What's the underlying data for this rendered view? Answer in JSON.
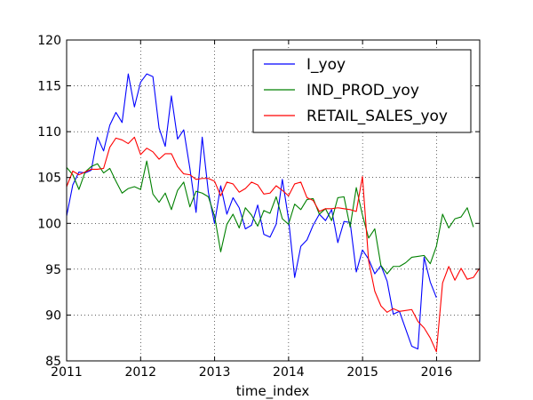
{
  "chart_data": {
    "type": "line",
    "xlabel": "time_index",
    "ylabel": "",
    "xlim": [
      2011.0,
      2016.583
    ],
    "ylim": [
      85,
      120
    ],
    "x_ticks": [
      2011,
      2012,
      2013,
      2014,
      2015,
      2016
    ],
    "x_tick_labels": [
      "2011",
      "2012",
      "2013",
      "2014",
      "2015",
      "2016"
    ],
    "y_ticks": [
      85,
      90,
      95,
      100,
      105,
      110,
      115,
      120
    ],
    "y_tick_labels": [
      "85",
      "90",
      "95",
      "100",
      "105",
      "110",
      "115",
      "120"
    ],
    "grid": true,
    "legend_position": "top-right",
    "x_step_per_point": 0.0833,
    "series": [
      {
        "name": "I_yoy",
        "color": "#0000ff",
        "x_start": 2011.0,
        "values": [
          100.8,
          104.2,
          105.6,
          105.5,
          105.8,
          109.4,
          107.9,
          110.7,
          112.1,
          111.0,
          116.3,
          112.7,
          115.4,
          116.3,
          116.0,
          110.4,
          108.4,
          113.9,
          109.2,
          110.2,
          106.0,
          101.2,
          109.4,
          103.4,
          100.0,
          104.1,
          101.0,
          102.8,
          101.7,
          99.4,
          99.8,
          102.0,
          98.8,
          98.5,
          99.9,
          104.8,
          100.5,
          94.1,
          97.5,
          98.2,
          99.8,
          101.0,
          100.3,
          101.5,
          97.9,
          100.2,
          100.1,
          94.7,
          97.1,
          96.1,
          94.5,
          95.4,
          93.7,
          90.1,
          90.4,
          88.5,
          86.6,
          86.3,
          96.3,
          93.6,
          91.9
        ]
      },
      {
        "name": "IND_PROD_yoy",
        "color": "#008000",
        "x_start": 2011.0,
        "values": [
          106.1,
          105.3,
          103.7,
          105.6,
          106.2,
          106.5,
          105.5,
          106.0,
          104.6,
          103.3,
          103.8,
          104.0,
          103.7,
          106.8,
          103.2,
          102.3,
          103.3,
          101.5,
          103.6,
          104.5,
          101.8,
          103.5,
          103.3,
          102.9,
          100.8,
          96.9,
          99.9,
          101.0,
          99.5,
          101.7,
          100.9,
          99.7,
          101.4,
          101.1,
          102.9,
          100.5,
          99.9,
          102.1,
          101.5,
          102.6,
          102.7,
          101.0,
          101.6,
          100.3,
          102.8,
          102.9,
          99.6,
          103.9,
          100.9,
          98.4,
          99.4,
          95.4,
          94.5,
          95.3,
          95.3,
          95.7,
          96.3,
          96.4,
          96.5,
          95.6,
          97.5,
          101.0,
          99.5,
          100.5,
          100.7,
          101.7,
          99.6
        ]
      },
      {
        "name": "RETAIL_SALES_yoy",
        "color": "#ff0000",
        "x_start": 2011.0,
        "values": [
          104.0,
          105.7,
          105.3,
          105.6,
          105.9,
          105.9,
          106.0,
          108.3,
          109.3,
          109.1,
          108.7,
          109.4,
          107.5,
          108.2,
          107.8,
          107.0,
          107.6,
          107.6,
          106.2,
          105.4,
          105.3,
          104.8,
          104.9,
          104.9,
          104.6,
          103.0,
          104.5,
          104.3,
          103.4,
          103.8,
          104.5,
          104.2,
          103.2,
          103.3,
          104.1,
          103.6,
          103.0,
          104.3,
          104.5,
          102.8,
          102.5,
          101.3,
          101.6,
          101.6,
          101.7,
          101.6,
          101.5,
          101.3,
          105.1,
          95.9,
          92.6,
          91.0,
          90.3,
          90.7,
          90.4,
          90.5,
          90.6,
          89.3,
          88.6,
          87.5,
          86.0,
          93.5,
          95.3,
          93.8,
          95.1,
          93.9,
          94.1,
          95.1
        ]
      }
    ]
  }
}
